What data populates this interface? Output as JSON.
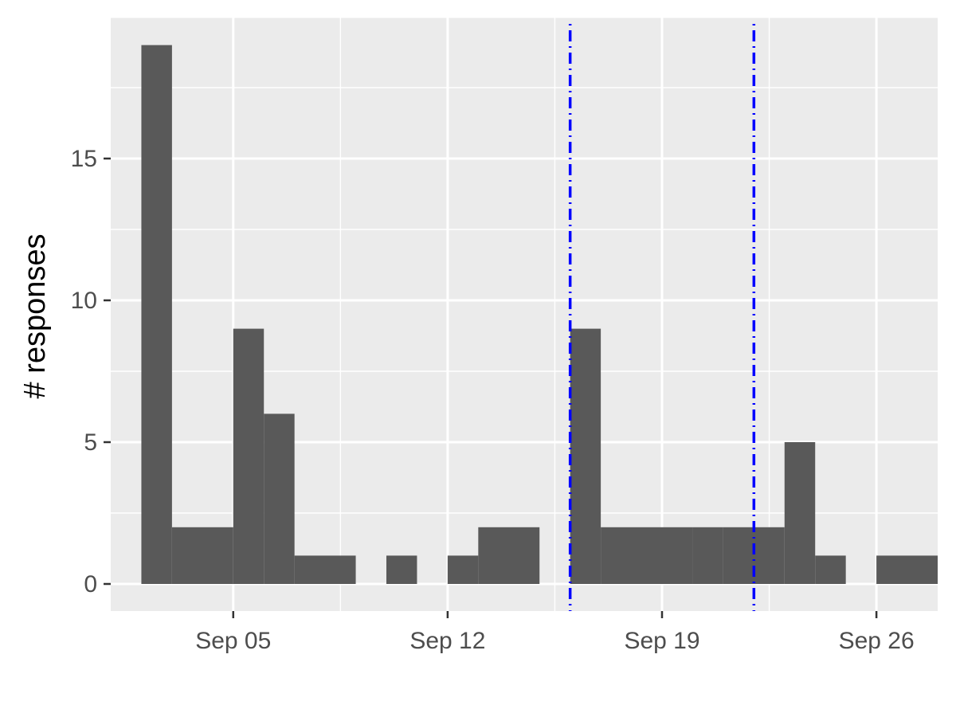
{
  "chart_data": {
    "type": "bar",
    "ylabel": "# responses",
    "xlabel": "",
    "x_axis": {
      "type": "date",
      "range": [
        "2021-09-01",
        "2021-09-28"
      ],
      "ticks": [
        {
          "date": "2021-09-05",
          "label": "Sep 05"
        },
        {
          "date": "2021-09-12",
          "label": "Sep 12"
        },
        {
          "date": "2021-09-19",
          "label": "Sep 19"
        },
        {
          "date": "2021-09-26",
          "label": "Sep 26"
        }
      ]
    },
    "y_axis": {
      "range": [
        0,
        20
      ],
      "ticks": [
        0,
        5,
        10,
        15
      ]
    },
    "bins": [
      {
        "start": "2021-09-02",
        "end": "2021-09-03",
        "count": 19
      },
      {
        "start": "2021-09-03",
        "end": "2021-09-05",
        "count": 2
      },
      {
        "start": "2021-09-05",
        "end": "2021-09-06",
        "count": 9
      },
      {
        "start": "2021-09-06",
        "end": "2021-09-07",
        "count": 6
      },
      {
        "start": "2021-09-07",
        "end": "2021-09-09",
        "count": 1
      },
      {
        "start": "2021-09-09",
        "end": "2021-09-10",
        "count": 0
      },
      {
        "start": "2021-09-10",
        "end": "2021-09-11",
        "count": 1
      },
      {
        "start": "2021-09-11",
        "end": "2021-09-12",
        "count": 0
      },
      {
        "start": "2021-09-12",
        "end": "2021-09-13",
        "count": 1
      },
      {
        "start": "2021-09-13",
        "end": "2021-09-15",
        "count": 2
      },
      {
        "start": "2021-09-15",
        "end": "2021-09-16",
        "count": 0
      },
      {
        "start": "2021-09-16",
        "end": "2021-09-17",
        "count": 9
      },
      {
        "start": "2021-09-17",
        "end": "2021-09-19",
        "count": 2
      },
      {
        "start": "2021-09-19",
        "end": "2021-09-20",
        "count": 2
      },
      {
        "start": "2021-09-20",
        "end": "2021-09-21",
        "count": 2
      },
      {
        "start": "2021-09-21",
        "end": "2021-09-23",
        "count": 2
      },
      {
        "start": "2021-09-23",
        "end": "2021-09-24",
        "count": 5
      },
      {
        "start": "2021-09-24",
        "end": "2021-09-25",
        "count": 1
      },
      {
        "start": "2021-09-25",
        "end": "2021-09-26",
        "count": 0
      },
      {
        "start": "2021-09-26",
        "end": "2021-09-28",
        "count": 1
      }
    ],
    "reference_lines": [
      {
        "date": "2021-09-16",
        "color": "#0000ff",
        "style": "dotdash"
      },
      {
        "date": "2021-09-22",
        "color": "#0000ff",
        "style": "dotdash"
      }
    ],
    "grid": true,
    "colors": {
      "bar": "#595959",
      "panel": "#ebebeb",
      "gridline": "#ffffff",
      "tick_text": "#4d4d4d"
    }
  }
}
